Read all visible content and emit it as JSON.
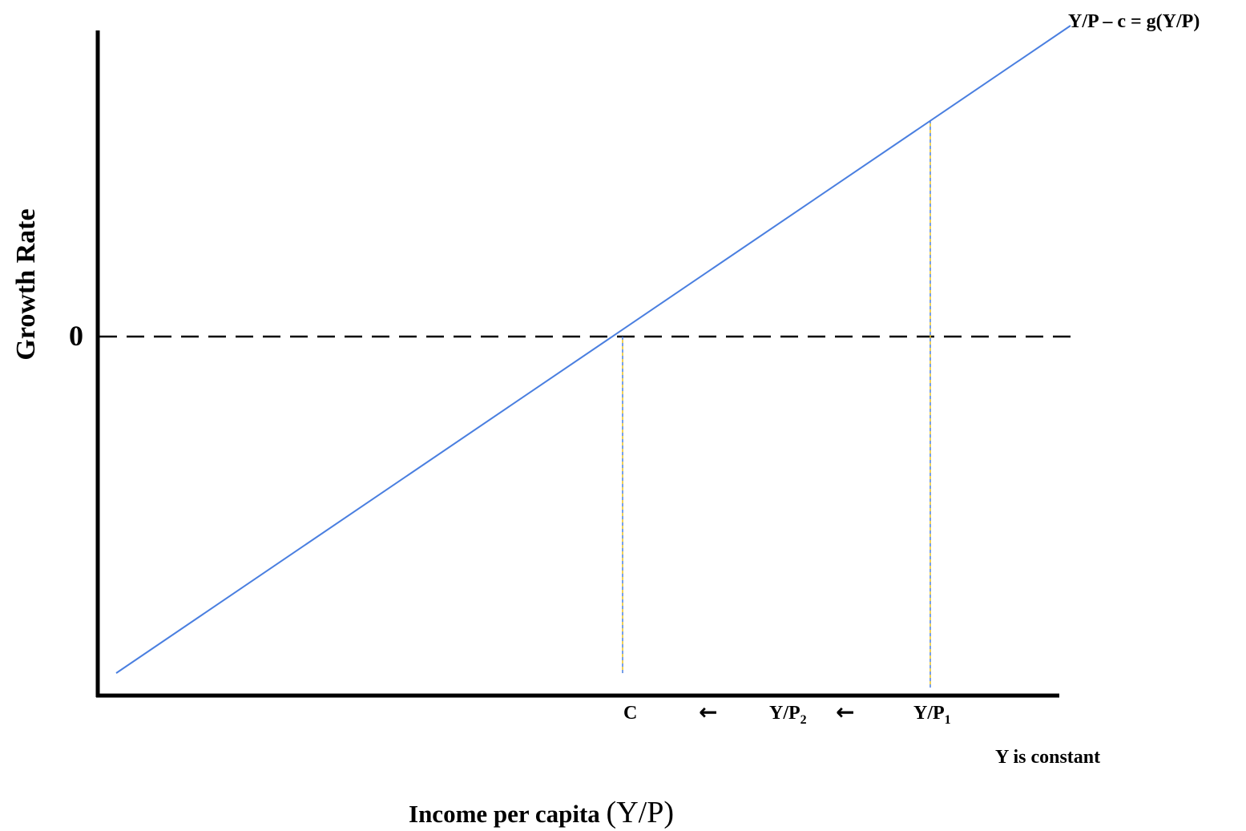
{
  "diagram": {
    "y_axis_label": "Growth Rate",
    "zero_label": "0",
    "curve_label": "Y/P – c = g(Y/P)",
    "x_ticks": {
      "c": "C",
      "yp2_main": "Y/P",
      "yp2_sub": "2",
      "yp1_main": "Y/P",
      "yp1_sub": "1",
      "arrow_glyph": "←"
    },
    "note": "Y is constant",
    "x_axis_label_prefix": "Income per capita ",
    "x_axis_label_symbol": "(Y/P)"
  },
  "colors": {
    "curve": "#4a7fe0",
    "axis": "#000000",
    "dashed_zero": "#000000",
    "drop_line_blue": "#4a7fe0",
    "drop_line_yellow": "#e8c020"
  }
}
